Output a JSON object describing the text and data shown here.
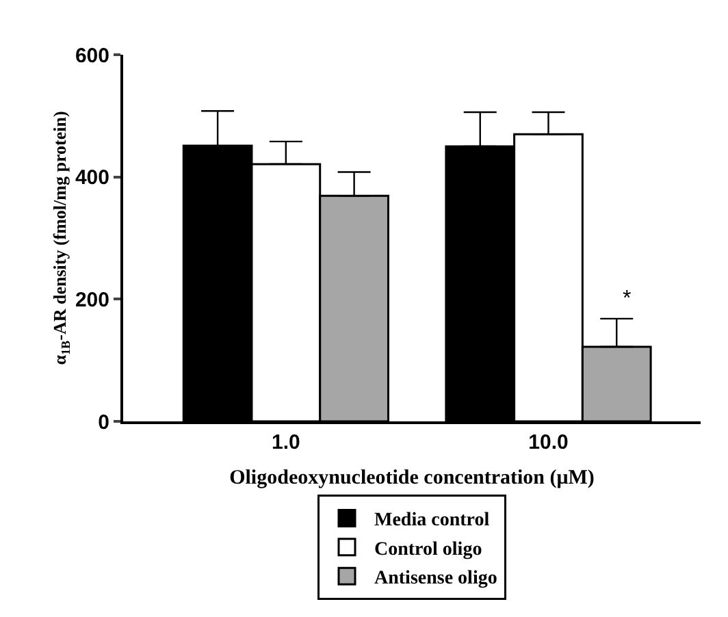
{
  "chart_data": {
    "type": "bar",
    "categories": [
      "1.0",
      "10.0"
    ],
    "xlabel": "Oligodeoxynucleotide concentration (μM)",
    "ylabel": "α$_{1B}$-AR density (fmol/mg protein)",
    "series": [
      {
        "name": "Media control",
        "color": "#000000",
        "values": [
          451,
          450
        ],
        "errors": [
          [
            451,
            508
          ],
          [
            450,
            506
          ]
        ]
      },
      {
        "name": "Control oligo",
        "color": "#ffffff",
        "values": [
          421,
          470
        ],
        "errors": [
          [
            421,
            458
          ],
          [
            470,
            506
          ]
        ]
      },
      {
        "name": "Antisense oligo",
        "color": "#a6a6a6",
        "values": [
          369,
          122
        ],
        "errors": [
          [
            369,
            408
          ],
          [
            122,
            168
          ]
        ]
      }
    ],
    "ylim": [
      0,
      600
    ],
    "yticks": [
      0,
      200,
      400,
      600
    ],
    "grid": false,
    "legend": "bottom",
    "annotations": [
      "*"
    ]
  }
}
